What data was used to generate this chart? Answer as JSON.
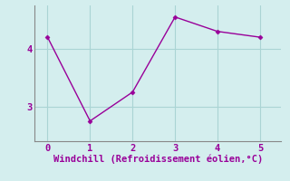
{
  "x": [
    0,
    1,
    2,
    3,
    4,
    5
  ],
  "y": [
    4.2,
    2.75,
    3.25,
    4.55,
    4.3,
    4.2
  ],
  "line_color": "#990099",
  "marker": "D",
  "marker_size": 2.5,
  "background_color": "#d4eeee",
  "grid_color": "#aad4d4",
  "xlabel": "Windchill (Refroidissement éolien,°C)",
  "xlabel_color": "#990099",
  "tick_color": "#990099",
  "spine_color": "#888888",
  "xlim": [
    -0.3,
    5.5
  ],
  "ylim": [
    2.4,
    4.75
  ],
  "yticks": [
    3,
    4
  ],
  "xticks": [
    0,
    1,
    2,
    3,
    4,
    5
  ],
  "font_size": 7.5,
  "xlabel_fontsize": 7.5,
  "line_width": 1.0
}
